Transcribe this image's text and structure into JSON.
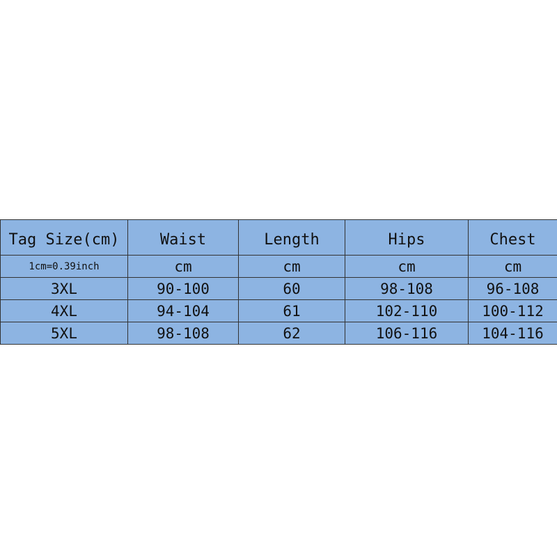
{
  "table": {
    "headers": [
      "Tag Size(cm)",
      "Waist",
      "Length",
      "Hips",
      "Chest"
    ],
    "units": [
      "1cm=0.39inch",
      "cm",
      "cm",
      "cm",
      "cm"
    ],
    "rows": [
      [
        "3XL",
        "90-100",
        "60",
        "98-108",
        "96-108"
      ],
      [
        "4XL",
        "94-104",
        "61",
        "102-110",
        "100-112"
      ],
      [
        "5XL",
        "98-108",
        "62",
        "106-116",
        "104-116"
      ]
    ]
  },
  "colors": {
    "cell_background": "#8db4e2",
    "border": "#333333"
  }
}
